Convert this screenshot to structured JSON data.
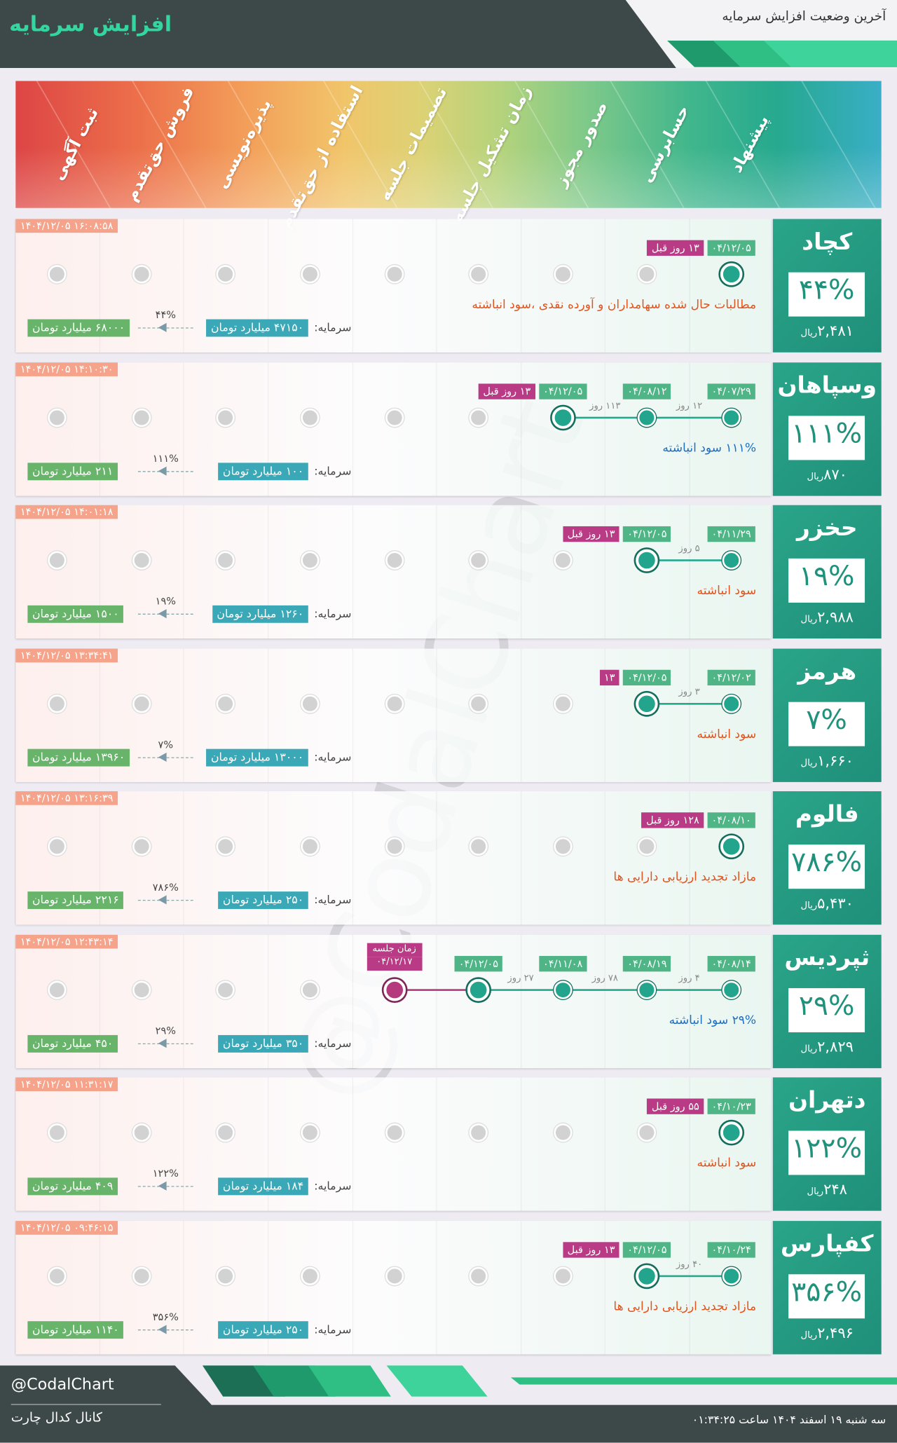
{
  "header": {
    "title": "افزایش سرمایه",
    "subtitle": "آخرین وضعیت افزایش سرمایه"
  },
  "stages": [
    "پیشنهاد",
    "حسابرسی",
    "صدور مجوز",
    "زمان تشکیل جلسه",
    "تصمیمات جلسه",
    "استفاده از حق‌تقدم",
    "پذیره‌نویسی",
    "فروش حق‌تقدم",
    "ثبت آگهی"
  ],
  "capital_label": "سرمایه:",
  "price_unit": "ریال",
  "watermark": "@CodalChart",
  "rows": [
    {
      "symbol": "کچاد",
      "percent": "۴۴%",
      "price": "۲,۴۸۱",
      "timestamp": "۱۴۰۴/۱۲/۰۵ ۱۶:۰۸:۵۸",
      "steps": [
        {
          "date": "۰۴/۱۲/۰۵"
        }
      ],
      "days_ago": "۱۳ روز قبل",
      "description": "مطالبات حال شده سهامداران و آورده نقدی ،سود انباشته",
      "desc_color": "#e2531d",
      "capital_now": "۴۷۱۵۰ میلیارد تومان",
      "capital_new": "۶۸۰۰۰ میلیارد تومان"
    },
    {
      "symbol": "وسپاهان",
      "percent": "۱۱۱%",
      "price": "۸۷۰",
      "timestamp": "۱۴۰۴/۱۲/۰۵ ۱۴:۱۰:۳۰",
      "steps": [
        {
          "date": "۰۴/۰۷/۲۹"
        },
        {
          "date": "۰۴/۰۸/۱۲",
          "gap": "۱۲ روز"
        },
        {
          "date": "۰۴/۱۲/۰۵",
          "gap": "۱۱۳ روز"
        }
      ],
      "days_ago": "۱۳ روز قبل",
      "description": "۱۱۱% سود انباشته",
      "desc_color": "#1e6fc4",
      "capital_now": "۱۰۰ میلیارد تومان",
      "capital_new": "۲۱۱ میلیارد تومان"
    },
    {
      "symbol": "حخزر",
      "percent": "۱۹%",
      "price": "۲,۹۸۸",
      "timestamp": "۱۴۰۴/۱۲/۰۵ ۱۴:۰۱:۱۸",
      "steps": [
        {
          "date": "۰۴/۱۱/۲۹"
        },
        {
          "date": "۰۴/۱۲/۰۵",
          "gap": "۵ روز"
        }
      ],
      "days_ago": "۱۳ روز قبل",
      "description": "سود انباشته",
      "desc_color": "#e2531d",
      "capital_now": "۱۲۶۰ میلیارد تومان",
      "capital_new": "۱۵۰۰ میلیارد تومان"
    },
    {
      "symbol": "هرمز",
      "percent": "۷%",
      "price": "۱,۶۶۰",
      "timestamp": "۱۴۰۴/۱۲/۰۵ ۱۳:۳۴:۴۱",
      "steps": [
        {
          "date": "۰۴/۱۲/۰۲"
        },
        {
          "date": "۰۴/۱۲/۰۵",
          "gap": "۳ روز"
        }
      ],
      "days_ago": "۱۳",
      "description": "سود انباشته",
      "desc_color": "#e2531d",
      "capital_now": "۱۳۰۰۰ میلیارد تومان",
      "capital_new": "۱۳۹۶۰ میلیارد تومان"
    },
    {
      "symbol": "فالوم",
      "percent": "۷۸۶%",
      "price": "۵,۴۳۰",
      "timestamp": "۱۴۰۴/۱۲/۰۵ ۱۳:۱۶:۳۹",
      "steps": [
        {
          "date": "۰۴/۰۸/۱۰"
        }
      ],
      "days_ago": "۱۲۸ روز قبل",
      "description": "مازاد تجدید ارزیابی دارایی ها",
      "desc_color": "#e2531d",
      "capital_now": "۲۵۰ میلیارد تومان",
      "capital_new": "۲۲۱۶ میلیارد تومان"
    },
    {
      "symbol": "ثپردیس",
      "percent": "۲۹%",
      "price": "۲,۸۲۹",
      "timestamp": "۱۴۰۴/۱۲/۰۵ ۱۲:۴۳:۱۴",
      "steps": [
        {
          "date": "۰۴/۰۸/۱۴"
        },
        {
          "date": "۰۴/۰۸/۱۹",
          "gap": "۴ روز"
        },
        {
          "date": "۰۴/۱۱/۰۸",
          "gap": "۷۸ روز"
        },
        {
          "date": "۰۴/۱۲/۰۵",
          "gap": "۲۷ روز"
        }
      ],
      "meeting": {
        "label": "زمان جلسه",
        "date": "۰۴/۱۲/۱۷"
      },
      "description": "۲۹% سود انباشته",
      "desc_color": "#1e6fc4",
      "capital_now": "۳۵۰ میلیارد تومان",
      "capital_new": "۴۵۰ میلیارد تومان"
    },
    {
      "symbol": "دتهران",
      "percent": "۱۲۲%",
      "price": "۲۴۸",
      "timestamp": "۱۴۰۴/۱۲/۰۵ ۱۱:۳۱:۱۷",
      "steps": [
        {
          "date": "۰۴/۱۰/۲۳"
        }
      ],
      "days_ago": "۵۵ روز قبل",
      "description": "سود انباشته",
      "desc_color": "#e2531d",
      "capital_now": "۱۸۴ میلیارد تومان",
      "capital_new": "۴۰۹ میلیارد تومان"
    },
    {
      "symbol": "کفپارس",
      "percent": "۳۵۶%",
      "price": "۲,۴۹۶",
      "timestamp": "۱۴۰۴/۱۲/۰۵ ۰۹:۴۶:۱۵",
      "steps": [
        {
          "date": "۰۴/۱۰/۲۴"
        },
        {
          "date": "۰۴/۱۲/۰۵",
          "gap": "۴۰ روز"
        }
      ],
      "days_ago": "۱۳ روز قبل",
      "description": "مازاد تجدید ارزیابی دارایی ها",
      "desc_color": "#e2531d",
      "capital_now": "۲۵۰ میلیارد تومان",
      "capital_new": "۱۱۴۰ میلیارد تومان"
    }
  ],
  "footer": {
    "handle": "@CodalChart",
    "channel": "کانال کدال چارت",
    "datetime": "سه شنبه ۱۹ اسفند ۱۴۰۴ ساعت ۰۱:۳۴:۲۵"
  }
}
